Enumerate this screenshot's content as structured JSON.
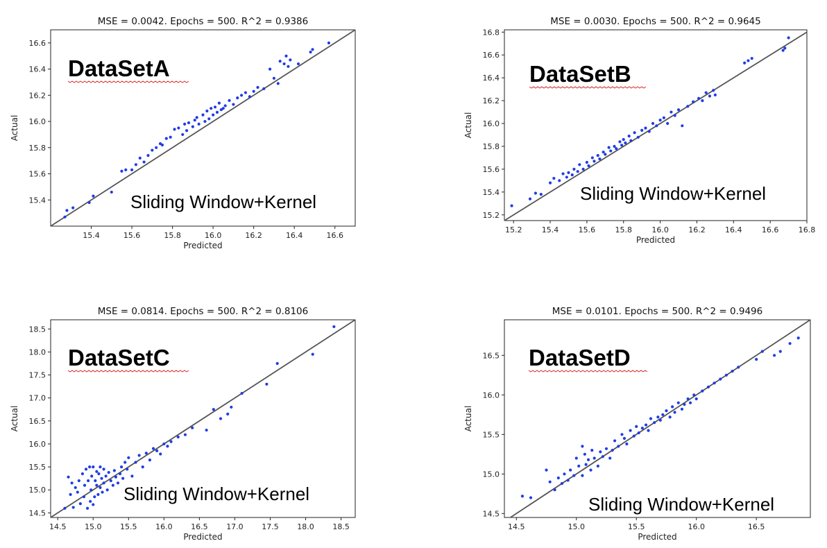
{
  "chart_data": [
    {
      "type": "scatter",
      "title": "MSE = 0.0042.  Epochs = 500.  R^2 = 0.9386",
      "dataset_label": "DataSetA",
      "method_label": "Sliding Window+Kernel",
      "xlabel": "Predicted",
      "ylabel": "Actual",
      "xlim": [
        15.2,
        16.7
      ],
      "ylim": [
        15.2,
        16.7
      ],
      "xticks": [
        "15.4",
        "15.6",
        "15.8",
        "16.0",
        "16.2",
        "16.4",
        "16.6"
      ],
      "yticks": [
        "15.4",
        "15.6",
        "15.8",
        "16.0",
        "16.2",
        "16.4",
        "16.6"
      ],
      "reference_line": "y = x",
      "colors": {
        "points": "#1f3ce6",
        "line": "#555555"
      },
      "x": [
        15.27,
        15.28,
        15.31,
        15.39,
        15.41,
        15.5,
        15.55,
        15.57,
        15.6,
        15.62,
        15.64,
        15.66,
        15.68,
        15.7,
        15.72,
        15.74,
        15.75,
        15.77,
        15.79,
        15.81,
        15.83,
        15.85,
        15.86,
        15.87,
        15.88,
        15.9,
        15.91,
        15.92,
        15.93,
        15.95,
        15.96,
        15.97,
        15.98,
        15.99,
        16.0,
        16.01,
        16.02,
        16.03,
        16.04,
        16.05,
        16.06,
        16.08,
        16.1,
        16.12,
        16.14,
        16.16,
        16.18,
        16.2,
        16.22,
        16.25,
        16.28,
        16.3,
        16.32,
        16.33,
        16.35,
        16.36,
        16.37,
        16.38,
        16.42,
        16.48,
        16.49,
        16.57
      ],
      "y": [
        15.27,
        15.32,
        15.34,
        15.38,
        15.43,
        15.46,
        15.62,
        15.63,
        15.63,
        15.67,
        15.72,
        15.69,
        15.74,
        15.78,
        15.8,
        15.83,
        15.82,
        15.87,
        15.88,
        15.94,
        15.95,
        15.9,
        15.98,
        15.93,
        15.99,
        15.96,
        16.01,
        16.03,
        15.98,
        16.05,
        16.0,
        16.08,
        16.02,
        16.1,
        16.05,
        16.11,
        16.07,
        16.14,
        16.09,
        16.1,
        16.12,
        16.16,
        16.13,
        16.18,
        16.2,
        16.22,
        16.19,
        16.23,
        16.26,
        16.25,
        16.4,
        16.33,
        16.29,
        16.46,
        16.44,
        16.5,
        16.42,
        16.47,
        16.44,
        16.53,
        16.55,
        16.6
      ]
    },
    {
      "type": "scatter",
      "title": "MSE = 0.0030.  Epochs = 500.  R^2 = 0.9645",
      "dataset_label": "DataSetB",
      "method_label": "Sliding Window+Kernel",
      "xlabel": "Predicted",
      "ylabel": "Actual",
      "xlim": [
        15.15,
        16.8
      ],
      "ylim": [
        15.15,
        16.82
      ],
      "xticks": [
        "15.2",
        "15.4",
        "15.6",
        "15.8",
        "16.0",
        "16.2",
        "16.4",
        "16.6",
        "16.8"
      ],
      "yticks": [
        "15.2",
        "15.4",
        "15.6",
        "15.8",
        "16.0",
        "16.2",
        "16.4",
        "16.6",
        "16.8"
      ],
      "reference_line": "y = x",
      "colors": {
        "points": "#1f3ce6",
        "line": "#555555"
      },
      "x": [
        15.19,
        15.29,
        15.32,
        15.35,
        15.4,
        15.42,
        15.45,
        15.47,
        15.49,
        15.5,
        15.52,
        15.53,
        15.55,
        15.56,
        15.58,
        15.6,
        15.61,
        15.63,
        15.64,
        15.66,
        15.67,
        15.69,
        15.7,
        15.72,
        15.73,
        15.75,
        15.76,
        15.78,
        15.79,
        15.8,
        15.81,
        15.83,
        15.84,
        15.86,
        15.88,
        15.9,
        15.92,
        15.94,
        15.96,
        15.98,
        16.0,
        16.02,
        16.04,
        16.06,
        16.08,
        16.1,
        16.12,
        16.15,
        16.18,
        16.21,
        16.23,
        16.25,
        16.27,
        16.29,
        16.3,
        16.46,
        16.48,
        16.5,
        16.67,
        16.68,
        16.7
      ],
      "y": [
        15.28,
        15.34,
        15.39,
        15.38,
        15.48,
        15.52,
        15.5,
        15.56,
        15.53,
        15.57,
        15.55,
        15.6,
        15.58,
        15.64,
        15.6,
        15.66,
        15.63,
        15.7,
        15.67,
        15.72,
        15.69,
        15.75,
        15.73,
        15.79,
        15.76,
        15.8,
        15.78,
        15.84,
        15.81,
        15.86,
        15.83,
        15.89,
        15.85,
        15.92,
        15.88,
        15.94,
        15.96,
        15.93,
        16.0,
        15.98,
        16.03,
        16.05,
        16.0,
        16.1,
        16.07,
        16.12,
        15.98,
        16.15,
        16.19,
        16.22,
        16.2,
        16.27,
        16.24,
        16.29,
        16.25,
        16.53,
        16.55,
        16.57,
        16.64,
        16.66,
        16.75
      ]
    },
    {
      "type": "scatter",
      "title": "MSE = 0.0814.  Epochs = 500.  R^2 = 0.8106",
      "dataset_label": "DataSetC",
      "method_label": "Sliding Window+Kernel",
      "xlabel": "Predicted",
      "ylabel": "Actual",
      "xlim": [
        14.4,
        18.7
      ],
      "ylim": [
        14.4,
        18.7
      ],
      "xticks": [
        "14.5",
        "15.0",
        "15.5",
        "16.0",
        "16.5",
        "17.0",
        "17.5",
        "18.0",
        "18.5"
      ],
      "yticks": [
        "14.5",
        "15.0",
        "15.5",
        "16.0",
        "16.5",
        "17.0",
        "17.5",
        "18.0",
        "18.5"
      ],
      "reference_line": "y = x",
      "colors": {
        "points": "#1f3ce6",
        "line": "#555555"
      },
      "x": [
        14.6,
        14.65,
        14.68,
        14.7,
        14.72,
        14.75,
        14.78,
        14.8,
        14.82,
        14.85,
        14.87,
        14.88,
        14.9,
        14.92,
        14.93,
        14.95,
        14.96,
        14.97,
        14.98,
        15.0,
        15.0,
        15.02,
        15.03,
        15.05,
        15.05,
        15.07,
        15.08,
        15.1,
        15.1,
        15.12,
        15.13,
        15.15,
        15.15,
        15.18,
        15.2,
        15.22,
        15.25,
        15.28,
        15.3,
        15.32,
        15.35,
        15.38,
        15.4,
        15.42,
        15.45,
        15.48,
        15.5,
        15.55,
        15.6,
        15.65,
        15.7,
        15.75,
        15.8,
        15.85,
        15.9,
        15.95,
        16.0,
        16.05,
        16.1,
        16.2,
        16.3,
        16.4,
        16.6,
        16.7,
        16.8,
        16.9,
        16.95,
        17.1,
        17.45,
        17.6,
        18.1,
        18.4
      ],
      "y": [
        14.6,
        15.28,
        14.9,
        15.15,
        14.62,
        15.05,
        14.95,
        15.2,
        14.7,
        15.35,
        14.85,
        15.1,
        15.45,
        14.6,
        15.2,
        15.5,
        14.75,
        15.0,
        15.3,
        14.68,
        15.5,
        14.85,
        15.2,
        15.1,
        15.4,
        14.9,
        15.35,
        15.05,
        15.5,
        15.25,
        14.95,
        15.15,
        15.45,
        15.3,
        15.0,
        15.38,
        15.2,
        15.1,
        15.42,
        15.28,
        15.15,
        15.35,
        15.5,
        15.25,
        15.6,
        15.45,
        15.7,
        15.3,
        15.6,
        15.75,
        15.5,
        15.8,
        15.65,
        15.9,
        15.85,
        15.78,
        16.0,
        15.95,
        16.05,
        16.15,
        16.2,
        16.35,
        16.3,
        16.75,
        16.55,
        16.65,
        16.8,
        17.1,
        17.3,
        17.75,
        17.95,
        18.55
      ]
    },
    {
      "type": "scatter",
      "title": "MSE = 0.0101.  Epochs = 500.  R^2 = 0.9496",
      "dataset_label": "DataSetD",
      "method_label": "Sliding Window+Kernel",
      "xlabel": "Predicted",
      "ylabel": "Actual",
      "xlim": [
        14.4,
        16.95
      ],
      "ylim": [
        14.45,
        16.95
      ],
      "xticks": [
        "14.5",
        "15.0",
        "15.5",
        "16.0",
        "16.5"
      ],
      "yticks": [
        "14.5",
        "15.0",
        "15.5",
        "16.0",
        "16.5"
      ],
      "reference_line": "y = x",
      "colors": {
        "points": "#1f3ce6",
        "line": "#555555"
      },
      "x": [
        14.55,
        14.62,
        14.75,
        14.78,
        14.82,
        14.85,
        14.88,
        14.9,
        14.93,
        14.95,
        14.98,
        15.0,
        15.02,
        15.05,
        15.05,
        15.07,
        15.08,
        15.1,
        15.12,
        15.13,
        15.15,
        15.18,
        15.2,
        15.22,
        15.25,
        15.28,
        15.3,
        15.32,
        15.35,
        15.38,
        15.4,
        15.42,
        15.45,
        15.48,
        15.5,
        15.52,
        15.55,
        15.58,
        15.6,
        15.62,
        15.65,
        15.68,
        15.7,
        15.72,
        15.75,
        15.78,
        15.8,
        15.82,
        15.85,
        15.88,
        15.9,
        15.93,
        15.95,
        15.98,
        16.0,
        16.05,
        16.1,
        16.15,
        16.2,
        16.25,
        16.3,
        16.35,
        16.5,
        16.55,
        16.65,
        16.7,
        16.78,
        16.85
      ],
      "y": [
        14.72,
        14.7,
        15.05,
        14.9,
        14.8,
        14.95,
        14.88,
        15.0,
        14.92,
        15.05,
        14.98,
        15.2,
        15.1,
        15.35,
        14.98,
        15.25,
        15.12,
        15.18,
        15.05,
        15.3,
        15.2,
        15.1,
        15.28,
        15.22,
        15.32,
        15.2,
        15.3,
        15.42,
        15.35,
        15.5,
        15.45,
        15.38,
        15.55,
        15.48,
        15.6,
        15.52,
        15.58,
        15.62,
        15.55,
        15.7,
        15.65,
        15.72,
        15.68,
        15.75,
        15.8,
        15.72,
        15.85,
        15.78,
        15.9,
        15.82,
        15.88,
        15.95,
        15.9,
        16.0,
        15.95,
        16.05,
        16.1,
        16.15,
        16.2,
        16.25,
        16.3,
        16.35,
        16.45,
        16.55,
        16.5,
        16.55,
        16.65,
        16.72
      ]
    }
  ]
}
